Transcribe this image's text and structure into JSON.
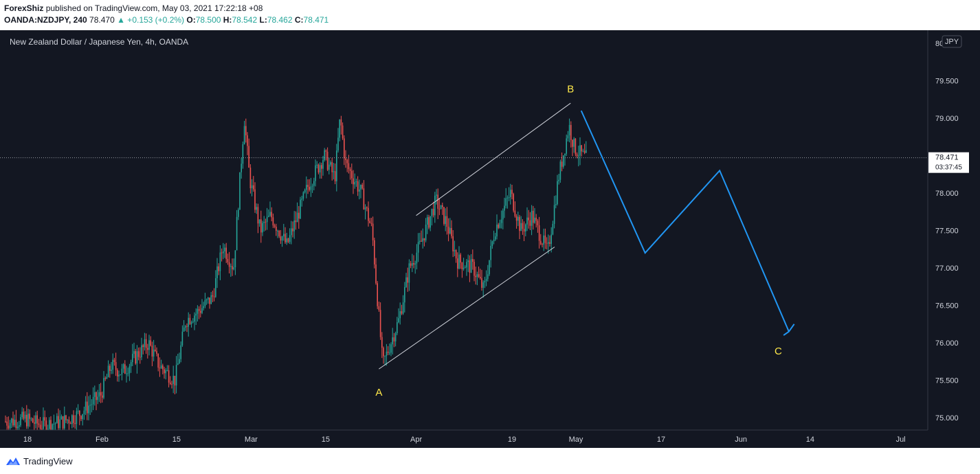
{
  "header": {
    "author": "ForexShiz",
    "published": " published on TradingView.com, May 03, 2021 17:22:18 +08",
    "symbol": "OANDA:NZDJPY, 240",
    "last": "78.470",
    "change": "▲ +0.153 (+0.2%)",
    "o_label": "O:",
    "o_value": "78.500",
    "h_label": "H:",
    "h_value": "78.542",
    "l_label": "L:",
    "l_value": "78.462",
    "c_label": "C:",
    "c_value": "78.471"
  },
  "footer": {
    "brand": "TradingView"
  },
  "colors": {
    "background": "#131722",
    "up": "#26a69a",
    "down": "#ef5350",
    "wave": "#2196f3",
    "label": "#ffe94a"
  },
  "chart_data": {
    "type": "candlestick",
    "title": "New Zealand Dollar / Japanese Yen, 4h, OANDA",
    "currency_badge": "JPY",
    "y_axis": {
      "ticks": [
        "80",
        "79.500",
        "79.000",
        "78.500",
        "78.000",
        "77.500",
        "77.000",
        "76.500",
        "76.000",
        "75.500",
        "75.000"
      ],
      "range": [
        74.85,
        80.05
      ]
    },
    "x_axis": {
      "ticks": [
        "18",
        "Feb",
        "15",
        "Mar",
        "15",
        "Apr",
        "19",
        "May",
        "17",
        "Jun",
        "14",
        "Jul"
      ]
    },
    "last_price": {
      "value": "78.471",
      "countdown": "03:37:45"
    },
    "price_path": [
      [
        "2021-01-15",
        74.95
      ],
      [
        "2021-01-18",
        74.98
      ],
      [
        "2021-01-21",
        74.9
      ],
      [
        "2021-01-25",
        74.95
      ],
      [
        "2021-01-28",
        75.05
      ],
      [
        "2021-02-01",
        75.3
      ],
      [
        "2021-02-03",
        75.7
      ],
      [
        "2021-02-05",
        75.6
      ],
      [
        "2021-02-08",
        75.85
      ],
      [
        "2021-02-10",
        76.0
      ],
      [
        "2021-02-12",
        75.7
      ],
      [
        "2021-02-15",
        75.5
      ],
      [
        "2021-02-17",
        76.3
      ],
      [
        "2021-02-19",
        76.4
      ],
      [
        "2021-02-22",
        76.6
      ],
      [
        "2021-02-24",
        77.3
      ],
      [
        "2021-02-26",
        77.0
      ],
      [
        "2021-02-28",
        79.0
      ],
      [
        "2021-03-01",
        78.2
      ],
      [
        "2021-03-03",
        77.5
      ],
      [
        "2021-03-05",
        77.7
      ],
      [
        "2021-03-08",
        77.3
      ],
      [
        "2021-03-10",
        77.7
      ],
      [
        "2021-03-12",
        78.1
      ],
      [
        "2021-03-15",
        78.5
      ],
      [
        "2021-03-17",
        78.2
      ],
      [
        "2021-03-18",
        79.0
      ],
      [
        "2021-03-19",
        78.4
      ],
      [
        "2021-03-22",
        78.0
      ],
      [
        "2021-03-24",
        77.5
      ],
      [
        "2021-03-26",
        75.7
      ],
      [
        "2021-03-29",
        76.3
      ],
      [
        "2021-03-31",
        77.0
      ],
      [
        "2021-04-02",
        77.3
      ],
      [
        "2021-04-05",
        77.9
      ],
      [
        "2021-04-07",
        77.6
      ],
      [
        "2021-04-09",
        77.1
      ],
      [
        "2021-04-12",
        77.0
      ],
      [
        "2021-04-14",
        76.7
      ],
      [
        "2021-04-16",
        77.5
      ],
      [
        "2021-04-19",
        78.0
      ],
      [
        "2021-04-21",
        77.5
      ],
      [
        "2021-04-23",
        77.7
      ],
      [
        "2021-04-26",
        77.2
      ],
      [
        "2021-04-28",
        78.2
      ],
      [
        "2021-04-30",
        78.9
      ],
      [
        "2021-05-01",
        78.6
      ],
      [
        "2021-05-03",
        78.47
      ]
    ],
    "channel_lines": [
      [
        [
          "2021-04-01",
          77.7
        ],
        [
          "2021-04-30",
          79.2
        ]
      ],
      [
        [
          "2021-03-25",
          75.65
        ],
        [
          "2021-04-27",
          77.28
        ]
      ]
    ],
    "wave_projection": [
      [
        "2021-05-02",
        79.1
      ],
      [
        "2021-05-14",
        77.2
      ],
      [
        "2021-05-28",
        78.3
      ],
      [
        "2021-06-10",
        76.15
      ]
    ],
    "wave_arrow_head": [
      [
        "2021-06-09",
        76.1
      ],
      [
        "2021-06-11",
        76.25
      ]
    ],
    "wave_labels": [
      {
        "text": "A",
        "date": "2021-03-25",
        "price": 75.35
      },
      {
        "text": "B",
        "date": "2021-04-30",
        "price": 79.4
      },
      {
        "text": "C",
        "date": "2021-06-08",
        "price": 75.9
      }
    ]
  }
}
